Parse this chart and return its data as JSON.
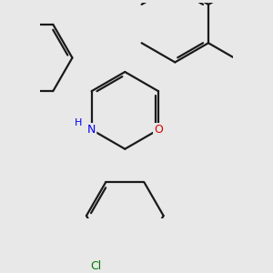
{
  "bg_color": "#e8e8e8",
  "bond_color": "#1a1a1a",
  "bond_width": 1.6,
  "N_color": "#0000ee",
  "O_color": "#dd0000",
  "Cl_color": "#007700",
  "figsize": [
    3.0,
    3.0
  ],
  "dpi": 100,
  "xlim": [
    -1.2,
    3.8
  ],
  "ylim": [
    -2.8,
    2.8
  ]
}
